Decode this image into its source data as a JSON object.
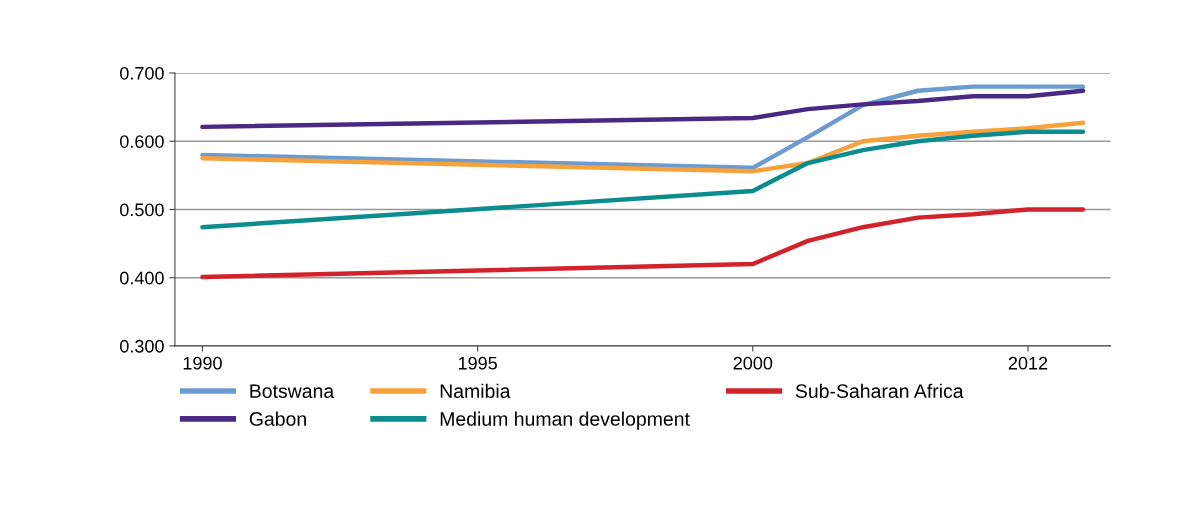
{
  "chart_data": {
    "type": "line",
    "categories": [
      "1990",
      null,
      null,
      null,
      null,
      "1995",
      null,
      null,
      null,
      null,
      "2000",
      null,
      null,
      null,
      null,
      "2012",
      null
    ],
    "series": [
      {
        "name": "Botswana",
        "color": "#6b9bd1",
        "values": [
          0.58,
          null,
          null,
          null,
          null,
          null,
          null,
          null,
          null,
          null,
          0.561,
          0.606,
          0.653,
          0.674,
          0.68,
          0.68,
          0.68
        ]
      },
      {
        "name": "Gabon",
        "color": "#4b2883",
        "values": [
          0.621,
          null,
          null,
          null,
          null,
          null,
          null,
          null,
          null,
          null,
          0.634,
          0.647,
          0.654,
          0.659,
          0.666,
          0.666,
          0.674
        ]
      },
      {
        "name": "Namibia",
        "color": "#f7a13b",
        "values": [
          0.575,
          null,
          null,
          null,
          null,
          null,
          null,
          null,
          null,
          null,
          0.556,
          0.568,
          0.6,
          0.608,
          0.614,
          0.619,
          0.627
        ]
      },
      {
        "name": "Medium human development",
        "color": "#0b8c8f",
        "values": [
          0.474,
          null,
          null,
          null,
          null,
          null,
          null,
          null,
          null,
          null,
          0.527,
          0.568,
          0.587,
          0.6,
          0.608,
          0.614,
          0.614
        ]
      },
      {
        "name": "Sub-Saharan Africa",
        "color": "#d2232a",
        "values": [
          0.401,
          null,
          null,
          null,
          null,
          null,
          null,
          null,
          null,
          null,
          0.42,
          0.454,
          0.474,
          0.488,
          0.493,
          0.5,
          0.5
        ]
      }
    ],
    "ylim": [
      0.3,
      0.7
    ],
    "yticks": [
      {
        "value": 0.3,
        "label": "0.300"
      },
      {
        "value": 0.4,
        "label": "0.400"
      },
      {
        "value": 0.5,
        "label": "0.500"
      },
      {
        "value": 0.6,
        "label": "0.600"
      },
      {
        "value": 0.7,
        "label": "0.700"
      }
    ],
    "grid": "y",
    "legend": "bottom",
    "marker": "none",
    "line_style": "solid"
  }
}
